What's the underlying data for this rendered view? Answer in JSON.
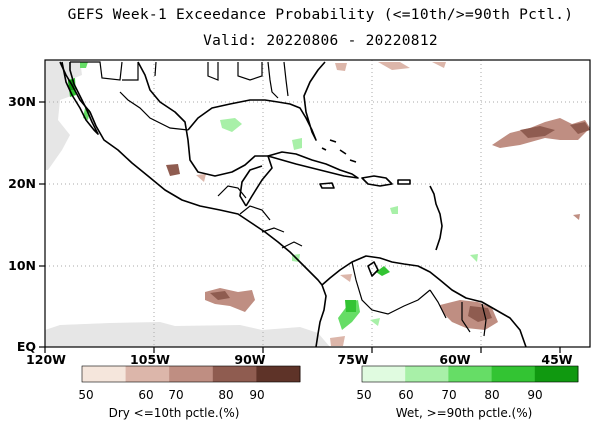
{
  "title_line1": "GEFS Week-1 Exceedance Probability (<=10th/>=90th Pctl.)",
  "title_line2": "Valid: 20220806 - 20220812",
  "lat_labels": [
    "30N",
    "20N",
    "10N",
    "EQ"
  ],
  "lon_labels": [
    "120W",
    "105W",
    "90W",
    "75W",
    "60W",
    "45W"
  ],
  "dry_legend": {
    "caption": "Dry <=10th pctle.(%)",
    "ticks": [
      "50",
      "60",
      "70",
      "80",
      "90"
    ],
    "colors": [
      "#f5e6dc",
      "#dcb6aa",
      "#bf8e82",
      "#8f5c50",
      "#5e3328"
    ]
  },
  "wet_legend": {
    "caption": "Wet, >=90th pctle.(%)",
    "ticks": [
      "50",
      "60",
      "70",
      "80",
      "90"
    ],
    "colors": [
      "#e0fbe0",
      "#a8f0a8",
      "#66dd66",
      "#33c433",
      "#109910"
    ]
  },
  "map_colors": {
    "land_outline": "#000000",
    "grid": "#aaaaaa",
    "missing": "#e6e6e6"
  }
}
